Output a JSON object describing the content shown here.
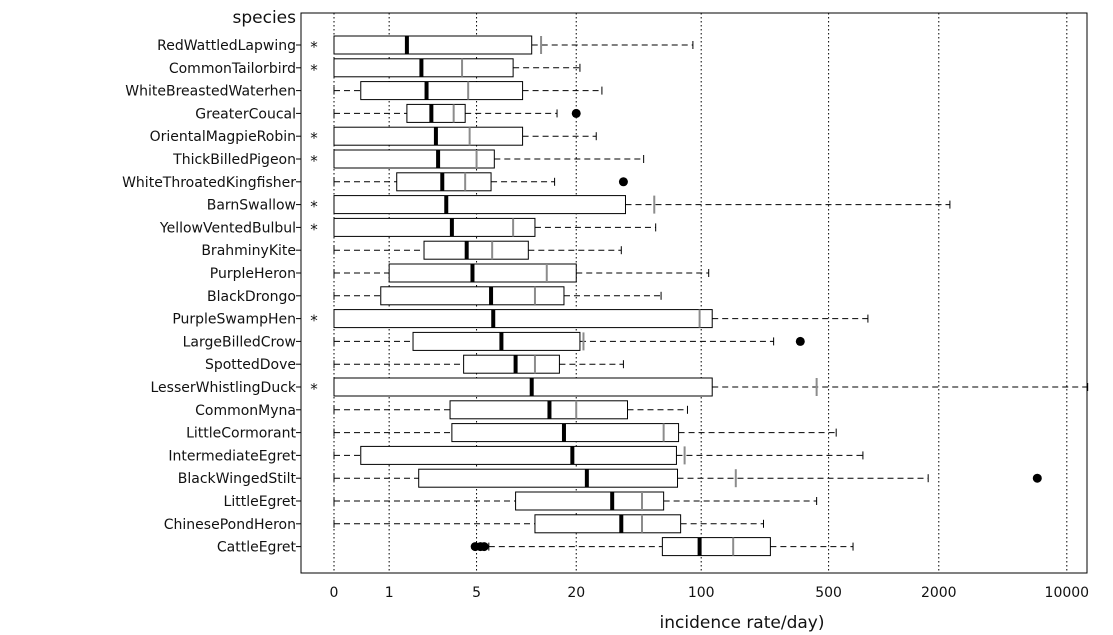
{
  "chart_data": {
    "type": "boxplot",
    "orientation": "horizontal",
    "title": "",
    "ylabel": "species",
    "xlabel": "incidence rate/day)",
    "x_scale": "pseudo-log",
    "xlim": [
      -0.3,
      17000
    ],
    "x_ticks": [
      0,
      1,
      5,
      20,
      100,
      500,
      2000,
      10000
    ],
    "x_tick_labels": [
      "0",
      "1",
      "5",
      "20",
      "100",
      "500",
      "2000",
      "10000"
    ],
    "vertical_grid": true,
    "grid_style": "dotted",
    "colors": {
      "box": "#000000",
      "median": "#000000",
      "mean": "#8c8c8c",
      "outlier": "#000000"
    },
    "categories": [
      "RedWattledLapwing",
      "CommonTailorbird",
      "WhiteBreastedWaterhen",
      "GreaterCoucal",
      "OrientalMagpieRobin",
      "ThickBilledPigeon",
      "WhiteThroatedKingfisher",
      "BarnSwallow",
      "YellowVentedBulbul",
      "BrahminyKite",
      "PurpleHeron",
      "BlackDrongo",
      "PurpleSwampHen",
      "LargeBilledCrow",
      "SpottedDove",
      "LesserWhistlingDuck",
      "CommonMyna",
      "LittleCormorant",
      "IntermediateEgret",
      "BlackWingedStilt",
      "LittleEgret",
      "ChinesePondHeron",
      "CattleEgret"
    ],
    "marker_symbol": "*",
    "species": [
      {
        "name": "RedWattledLapwing",
        "marked": true,
        "min": 0,
        "q1": 0,
        "median": 1.5,
        "q3": 11,
        "max": 90,
        "mean": 12.5,
        "outliers": []
      },
      {
        "name": "CommonTailorbird",
        "marked": true,
        "min": 0,
        "q1": 0,
        "median": 2,
        "q3": 8.5,
        "max": 21,
        "mean": 4,
        "outliers": []
      },
      {
        "name": "WhiteBreastedWaterhen",
        "marked": false,
        "min": 0,
        "q1": 0.4,
        "median": 2.2,
        "q3": 9.7,
        "max": 28,
        "mean": 4.4,
        "outliers": []
      },
      {
        "name": "GreaterCoucal",
        "marked": false,
        "min": 0,
        "q1": 1.5,
        "median": 2.4,
        "q3": 4.2,
        "max": 15.5,
        "mean": 3.5,
        "outliers": [
          20
        ]
      },
      {
        "name": "OrientalMagpieRobin",
        "marked": true,
        "min": 0,
        "q1": 0,
        "median": 2.6,
        "q3": 9.7,
        "max": 26,
        "mean": 4.5,
        "outliers": []
      },
      {
        "name": "ThickBilledPigeon",
        "marked": true,
        "min": 0,
        "q1": 0,
        "median": 2.7,
        "q3": 6.5,
        "max": 48,
        "mean": 5,
        "outliers": []
      },
      {
        "name": "WhiteThroatedKingfisher",
        "marked": false,
        "min": 0,
        "q1": 1.2,
        "median": 2.9,
        "q3": 6.2,
        "max": 15,
        "mean": 4.2,
        "outliers": [
          37
        ]
      },
      {
        "name": "BarnSwallow",
        "marked": true,
        "min": 0,
        "q1": 0,
        "median": 3.1,
        "q3": 38,
        "max": 2300,
        "mean": 55,
        "outliers": []
      },
      {
        "name": "YellowVentedBulbul",
        "marked": true,
        "min": 0,
        "q1": 0,
        "median": 3.4,
        "q3": 11.5,
        "max": 56,
        "mean": 8.5,
        "outliers": []
      },
      {
        "name": "BrahminyKite",
        "marked": false,
        "min": 0,
        "q1": 2.1,
        "median": 4.3,
        "q3": 10.5,
        "max": 36,
        "mean": 6.3,
        "outliers": []
      },
      {
        "name": "PurpleHeron",
        "marked": false,
        "min": 0,
        "q1": 1,
        "median": 4.7,
        "q3": 20,
        "max": 110,
        "mean": 13.5,
        "outliers": []
      },
      {
        "name": "BlackDrongo",
        "marked": false,
        "min": 0,
        "q1": 0.8,
        "median": 6.2,
        "q3": 17,
        "max": 60,
        "mean": 11.5,
        "outliers": []
      },
      {
        "name": "PurpleSwampHen",
        "marked": true,
        "min": 0,
        "q1": 0,
        "median": 6.4,
        "q3": 115,
        "max": 820,
        "mean": 98,
        "outliers": []
      },
      {
        "name": "LargeBilledCrow",
        "marked": false,
        "min": 0,
        "q1": 1.7,
        "median": 7.2,
        "q3": 21,
        "max": 250,
        "mean": 22,
        "outliers": [
          350
        ]
      },
      {
        "name": "SpottedDove",
        "marked": false,
        "min": 0,
        "q1": 4.1,
        "median": 8.8,
        "q3": 16,
        "max": 37,
        "mean": 11.5,
        "outliers": []
      },
      {
        "name": "LesserWhistlingDuck",
        "marked": true,
        "min": 0,
        "q1": 0,
        "median": 11,
        "q3": 115,
        "max": 13000,
        "mean": 430,
        "outliers": []
      },
      {
        "name": "CommonMyna",
        "marked": false,
        "min": 0,
        "q1": 3.3,
        "median": 14,
        "q3": 39,
        "max": 84,
        "mean": 20,
        "outliers": []
      },
      {
        "name": "LittleCormorant",
        "marked": false,
        "min": 0,
        "q1": 3.4,
        "median": 17,
        "q3": 75,
        "max": 550,
        "mean": 62,
        "outliers": []
      },
      {
        "name": "IntermediateEgret",
        "marked": false,
        "min": 0,
        "q1": 0.4,
        "median": 19,
        "q3": 73,
        "max": 770,
        "mean": 81,
        "outliers": []
      },
      {
        "name": "BlackWingedStilt",
        "marked": false,
        "min": 0,
        "q1": 1.9,
        "median": 23,
        "q3": 74,
        "max": 1750,
        "mean": 155,
        "outliers": [
          6900
        ]
      },
      {
        "name": "LittleEgret",
        "marked": false,
        "min": 0,
        "q1": 8.8,
        "median": 32,
        "q3": 62,
        "max": 430,
        "mean": 47,
        "outliers": []
      },
      {
        "name": "ChinesePondHeron",
        "marked": false,
        "min": 0,
        "q1": 11.5,
        "median": 36,
        "q3": 77,
        "max": 220,
        "mean": 47,
        "outliers": []
      },
      {
        "name": "CattleEgret",
        "marked": false,
        "min": 6,
        "q1": 61,
        "median": 98,
        "q3": 240,
        "max": 680,
        "mean": 150,
        "outliers": [
          4.9,
          5.3,
          5.6
        ]
      }
    ]
  }
}
